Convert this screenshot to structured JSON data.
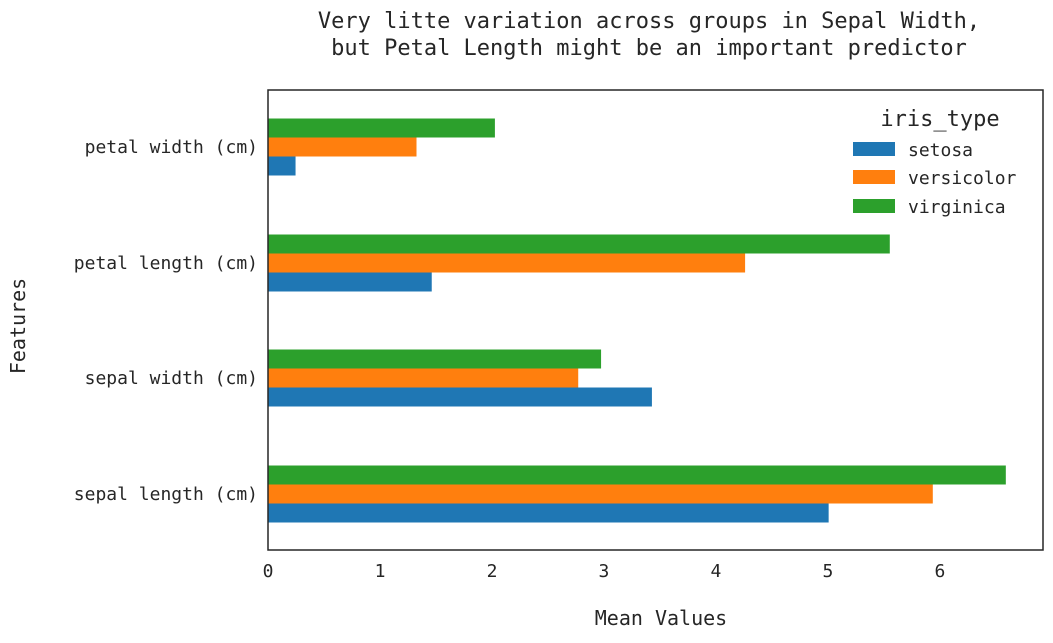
{
  "chart_data": {
    "type": "bar",
    "orientation": "horizontal",
    "title_lines": [
      "Very litte variation across groups in Sepal Width,",
      "but Petal Length might be an important predictor"
    ],
    "xlabel": "Mean Values",
    "ylabel": "Features",
    "categories": [
      "sepal length (cm)",
      "sepal width (cm)",
      "petal length (cm)",
      "petal width (cm)"
    ],
    "series": [
      {
        "name": "setosa",
        "color": "#1f77b4",
        "values": [
          5.006,
          3.428,
          1.462,
          0.246
        ]
      },
      {
        "name": "versicolor",
        "color": "#ff7f0e",
        "values": [
          5.936,
          2.77,
          4.26,
          1.326
        ]
      },
      {
        "name": "virginica",
        "color": "#2ca02c",
        "values": [
          6.588,
          2.974,
          5.552,
          2.026
        ]
      }
    ],
    "xlim": [
      0,
      6.92
    ],
    "xticks": [
      "0",
      "1",
      "2",
      "3",
      "4",
      "5",
      "6"
    ],
    "grid": false,
    "legend": {
      "title": "iris_type",
      "placement": "top-right"
    }
  }
}
